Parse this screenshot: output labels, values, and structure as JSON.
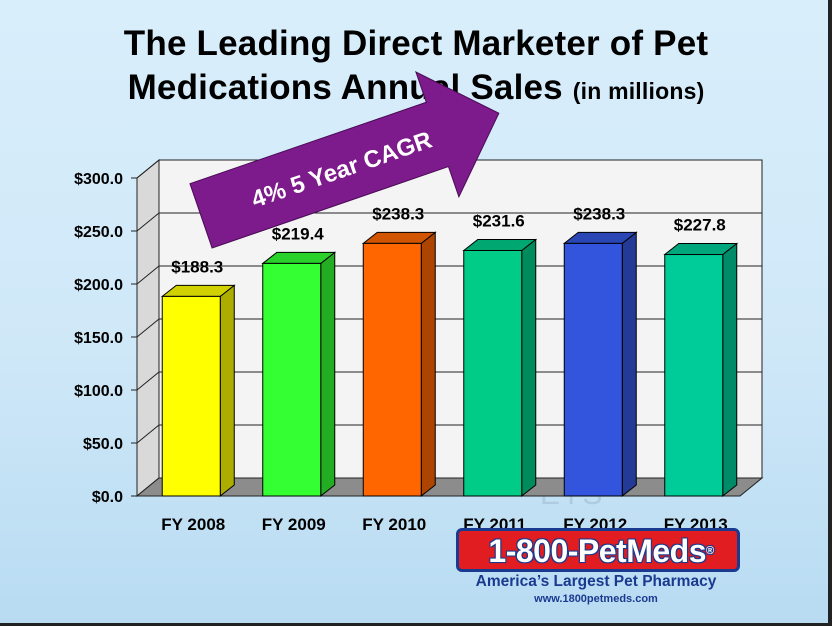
{
  "title_line1": "The Leading Direct Marketer of Pet",
  "title_line2": "Medications Annual Sales",
  "title_sub": "(in millions)",
  "arrow_text": "4% 5 Year CAGR",
  "watermark": "ETS",
  "logo": {
    "name": "1-800-PetMeds",
    "reg": "®",
    "tagline": "America’s Largest Pet Pharmacy",
    "url": "www.1800petmeds.com"
  },
  "colors": {
    "arrow": "#7d1a8c",
    "wall": "#f4f4f4",
    "floor": "#8c8c8c"
  },
  "chart_data": {
    "type": "bar",
    "title": "The Leading Direct Marketer of Pet Medications Annual Sales (in millions)",
    "categories": [
      "FY 2008",
      "FY 2009",
      "FY 2010",
      "FY 2011",
      "FY 2012",
      "FY 2013"
    ],
    "values": [
      188.3,
      219.4,
      238.3,
      231.6,
      238.3,
      227.8
    ],
    "value_labels": [
      "$188.3",
      "$219.4",
      "$238.3",
      "$231.6",
      "$238.3",
      "$227.8"
    ],
    "bar_colors": [
      "#ffff00",
      "#33ff33",
      "#ff6600",
      "#00cc88",
      "#3355dd",
      "#00cc99"
    ],
    "y_ticks": [
      "$0.0",
      "$50.0",
      "$100.0",
      "$150.0",
      "$200.0",
      "$250.0",
      "$300.0"
    ],
    "y_tick_values": [
      0,
      50,
      100,
      150,
      200,
      250,
      300
    ],
    "ylim": [
      0,
      300
    ],
    "xlabel": "",
    "ylabel": "",
    "grid": true,
    "annotation": "4% 5 Year CAGR"
  }
}
